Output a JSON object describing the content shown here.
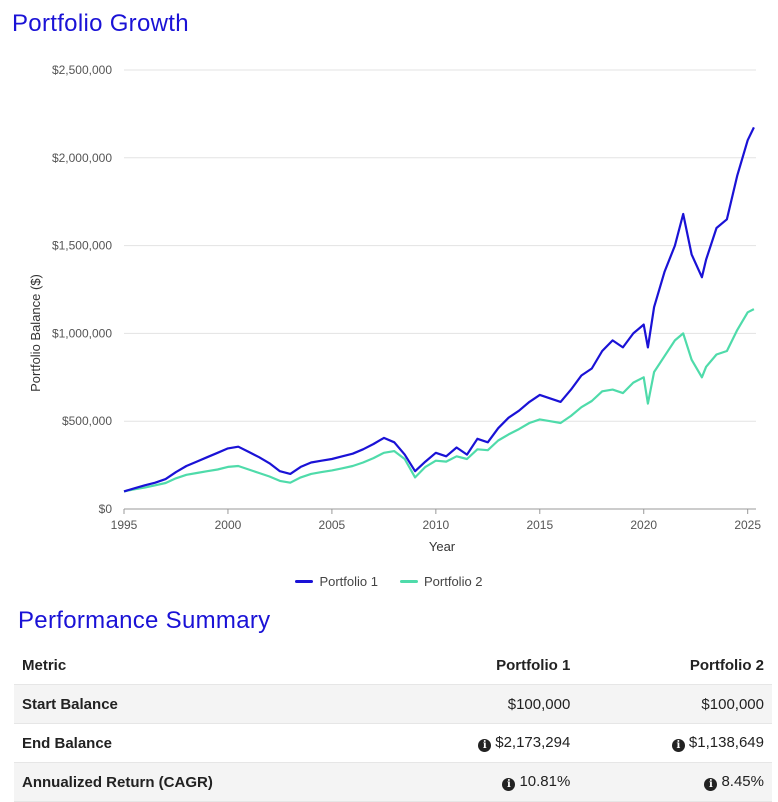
{
  "chart_section": {
    "title": "Portfolio Growth"
  },
  "chart_data": {
    "type": "line",
    "title": "Portfolio Growth",
    "xlabel": "Year",
    "ylabel": "Portfolio Balance ($)",
    "xlim": [
      1995,
      2025.4
    ],
    "ylim": [
      0,
      2500000
    ],
    "x_ticks": [
      1995,
      2000,
      2005,
      2010,
      2015,
      2020,
      2025
    ],
    "y_ticks": [
      {
        "value": 0,
        "label": "$0"
      },
      {
        "value": 500000,
        "label": "$500,000"
      },
      {
        "value": 1000000,
        "label": "$1,000,000"
      },
      {
        "value": 1500000,
        "label": "$1,500,000"
      },
      {
        "value": 2000000,
        "label": "$2,000,000"
      },
      {
        "value": 2500000,
        "label": "$2,500,000"
      }
    ],
    "grid": true,
    "legend_position": "bottom-center",
    "series": [
      {
        "name": "Portfolio 1",
        "color": "#1a12d6",
        "x": [
          1995,
          1995.5,
          1996,
          1996.5,
          1997,
          1997.5,
          1998,
          1998.5,
          1999,
          1999.5,
          2000,
          2000.5,
          2001,
          2001.5,
          2002,
          2002.5,
          2003,
          2003.5,
          2004,
          2004.5,
          2005,
          2005.5,
          2006,
          2006.5,
          2007,
          2007.5,
          2008,
          2008.5,
          2009,
          2009.5,
          2010,
          2010.5,
          2011,
          2011.5,
          2012,
          2012.5,
          2013,
          2013.5,
          2014,
          2014.5,
          2015,
          2015.5,
          2016,
          2016.5,
          2017,
          2017.5,
          2018,
          2018.5,
          2019,
          2019.5,
          2020,
          2020.2,
          2020.5,
          2021,
          2021.5,
          2021.9,
          2022.3,
          2022.8,
          2023,
          2023.5,
          2024,
          2024.5,
          2025,
          2025.3
        ],
        "values": [
          100000,
          118000,
          135000,
          150000,
          170000,
          210000,
          245000,
          270000,
          295000,
          320000,
          345000,
          355000,
          325000,
          295000,
          260000,
          215000,
          200000,
          240000,
          265000,
          275000,
          285000,
          300000,
          315000,
          340000,
          370000,
          405000,
          380000,
          310000,
          215000,
          270000,
          320000,
          300000,
          350000,
          310000,
          400000,
          380000,
          460000,
          520000,
          560000,
          610000,
          650000,
          630000,
          610000,
          680000,
          760000,
          800000,
          900000,
          960000,
          920000,
          1000000,
          1050000,
          920000,
          1150000,
          1350000,
          1500000,
          1680000,
          1450000,
          1320000,
          1420000,
          1600000,
          1650000,
          1900000,
          2100000,
          2173294
        ]
      },
      {
        "name": "Portfolio 2",
        "color": "#4fdbaa",
        "x": [
          1995,
          1995.5,
          1996,
          1996.5,
          1997,
          1997.5,
          1998,
          1998.5,
          1999,
          1999.5,
          2000,
          2000.5,
          2001,
          2001.5,
          2002,
          2002.5,
          2003,
          2003.5,
          2004,
          2004.5,
          2005,
          2005.5,
          2006,
          2006.5,
          2007,
          2007.5,
          2008,
          2008.5,
          2009,
          2009.5,
          2010,
          2010.5,
          2011,
          2011.5,
          2012,
          2012.5,
          2013,
          2013.5,
          2014,
          2014.5,
          2015,
          2015.5,
          2016,
          2016.5,
          2017,
          2017.5,
          2018,
          2018.5,
          2019,
          2019.5,
          2020,
          2020.2,
          2020.5,
          2021,
          2021.5,
          2021.9,
          2022.3,
          2022.8,
          2023,
          2023.5,
          2024,
          2024.5,
          2025,
          2025.3
        ],
        "values": [
          100000,
          112000,
          122000,
          135000,
          148000,
          175000,
          195000,
          205000,
          215000,
          225000,
          240000,
          245000,
          225000,
          205000,
          185000,
          160000,
          150000,
          180000,
          200000,
          210000,
          220000,
          232000,
          245000,
          265000,
          290000,
          320000,
          330000,
          285000,
          180000,
          240000,
          275000,
          270000,
          300000,
          285000,
          340000,
          335000,
          390000,
          425000,
          455000,
          490000,
          510000,
          500000,
          490000,
          530000,
          580000,
          615000,
          670000,
          680000,
          660000,
          720000,
          750000,
          600000,
          780000,
          870000,
          960000,
          1000000,
          850000,
          750000,
          810000,
          880000,
          900000,
          1020000,
          1120000,
          1138649
        ]
      }
    ]
  },
  "summary_section": {
    "title": "Performance Summary",
    "columns": [
      "Metric",
      "Portfolio 1",
      "Portfolio 2"
    ],
    "rows": [
      {
        "metric": "Start Balance",
        "p1": "$100,000",
        "p2": "$100,000",
        "info": false
      },
      {
        "metric": "End Balance",
        "p1": "$2,173,294",
        "p2": "$1,138,649",
        "info": true
      },
      {
        "metric": "Annualized Return (CAGR)",
        "p1": "10.81%",
        "p2": "8.45%",
        "info": true
      }
    ]
  }
}
